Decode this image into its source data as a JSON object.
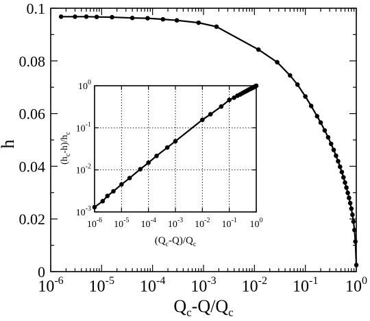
{
  "chart_data": [
    {
      "id": "main",
      "type": "line",
      "xscale": "log",
      "xlim": [
        1e-06,
        1
      ],
      "ylim": [
        0,
        0.1
      ],
      "xlabel": {
        "base": "Q",
        "sub1": "c",
        "mid": "-Q/Q",
        "sub2": "c"
      },
      "ylabel": "h",
      "x_ticks": [
        {
          "value": 1e-06,
          "base": "10",
          "exp": "-6"
        },
        {
          "value": 1e-05,
          "base": "10",
          "exp": "-5"
        },
        {
          "value": 0.0001,
          "base": "10",
          "exp": "-4"
        },
        {
          "value": 0.001,
          "base": "10",
          "exp": "-3"
        },
        {
          "value": 0.01,
          "base": "10",
          "exp": "-2"
        },
        {
          "value": 0.1,
          "base": "10",
          "exp": "-1"
        },
        {
          "value": 1,
          "base": "10",
          "exp": "0"
        }
      ],
      "y_ticks": [
        {
          "value": 0,
          "label": "0"
        },
        {
          "value": 0.02,
          "label": "0.02"
        },
        {
          "value": 0.04,
          "label": "0.04"
        },
        {
          "value": 0.06,
          "label": "0.06"
        },
        {
          "value": 0.08,
          "label": "0.08"
        },
        {
          "value": 0.1,
          "label": "0.1"
        }
      ],
      "series": [
        {
          "x": [
            1.6e-06,
            3e-06,
            5e-06,
            8e-06,
            1.6e-05,
            4e-05,
            8e-05,
            0.00016,
            0.0003,
            0.0008,
            0.0018,
            0.012,
            0.028,
            0.05,
            0.07,
            0.1,
            0.13,
            0.17,
            0.2,
            0.24,
            0.28,
            0.32,
            0.36,
            0.4,
            0.44,
            0.48,
            0.52,
            0.56,
            0.6,
            0.64,
            0.68,
            0.72,
            0.76,
            0.8,
            0.84,
            0.88,
            0.92,
            0.96,
            1.0
          ],
          "y": [
            0.0968,
            0.0968,
            0.0968,
            0.0967,
            0.0966,
            0.0963,
            0.0962,
            0.0958,
            0.0954,
            0.0945,
            0.093,
            0.0843,
            0.0795,
            0.0745,
            0.071,
            0.0665,
            0.0629,
            0.059,
            0.0566,
            0.0536,
            0.051,
            0.0485,
            0.0462,
            0.044,
            0.0419,
            0.0398,
            0.0378,
            0.0358,
            0.0338,
            0.0319,
            0.0299,
            0.028,
            0.026,
            0.0239,
            0.0216,
            0.019,
            0.0158,
            0.0114,
            0.0025
          ]
        }
      ]
    },
    {
      "id": "inset",
      "type": "line",
      "xscale": "log",
      "yscale": "log",
      "grid": true,
      "xlim": [
        1e-06,
        1
      ],
      "ylim": [
        0.001,
        1
      ],
      "xlabel": {
        "p1": "(Q",
        "s1": "c",
        "p2": "-Q)/Q",
        "s2": "c"
      },
      "ylabel": {
        "p1": "(h",
        "s1": "c",
        "p2": "-h)/h",
        "s2": "c"
      },
      "x_ticks": [
        {
          "value": 1e-06,
          "base": "10",
          "exp": "-6"
        },
        {
          "value": 1e-05,
          "base": "10",
          "exp": "-5"
        },
        {
          "value": 0.0001,
          "base": "10",
          "exp": "-4"
        },
        {
          "value": 0.001,
          "base": "10",
          "exp": "-3"
        },
        {
          "value": 0.01,
          "base": "10",
          "exp": "-2"
        },
        {
          "value": 0.1,
          "base": "10",
          "exp": "-1"
        },
        {
          "value": 1,
          "base": "10",
          "exp": "0"
        }
      ],
      "y_ticks": [
        {
          "value": 0.001,
          "base": "10",
          "exp": "-3"
        },
        {
          "value": 0.01,
          "base": "10",
          "exp": "-2"
        },
        {
          "value": 0.1,
          "base": "10",
          "exp": "-1"
        },
        {
          "value": 1,
          "base": "10",
          "exp": "0"
        }
      ],
      "series": [
        {
          "x": [
            1e-06,
            2e-06,
            3e-06,
            5e-06,
            1e-05,
            2e-05,
            5e-05,
            0.0001,
            0.0002,
            0.0005,
            0.001,
            0.01,
            0.02,
            0.05,
            0.1,
            0.15,
            0.2,
            0.25,
            0.3,
            0.35,
            0.4,
            0.45,
            0.5,
            0.55,
            0.6,
            0.65,
            0.7,
            0.75,
            0.8,
            0.85,
            0.9,
            0.95,
            1.0
          ],
          "y": [
            0.0013,
            0.0018,
            0.0024,
            0.0031,
            0.0045,
            0.0064,
            0.0104,
            0.0148,
            0.0215,
            0.034,
            0.048,
            0.155,
            0.21,
            0.32,
            0.46,
            0.52,
            0.58,
            0.62,
            0.66,
            0.7,
            0.73,
            0.76,
            0.79,
            0.82,
            0.84,
            0.86,
            0.88,
            0.9,
            0.92,
            0.94,
            0.96,
            0.98,
            1.0
          ]
        }
      ]
    }
  ]
}
